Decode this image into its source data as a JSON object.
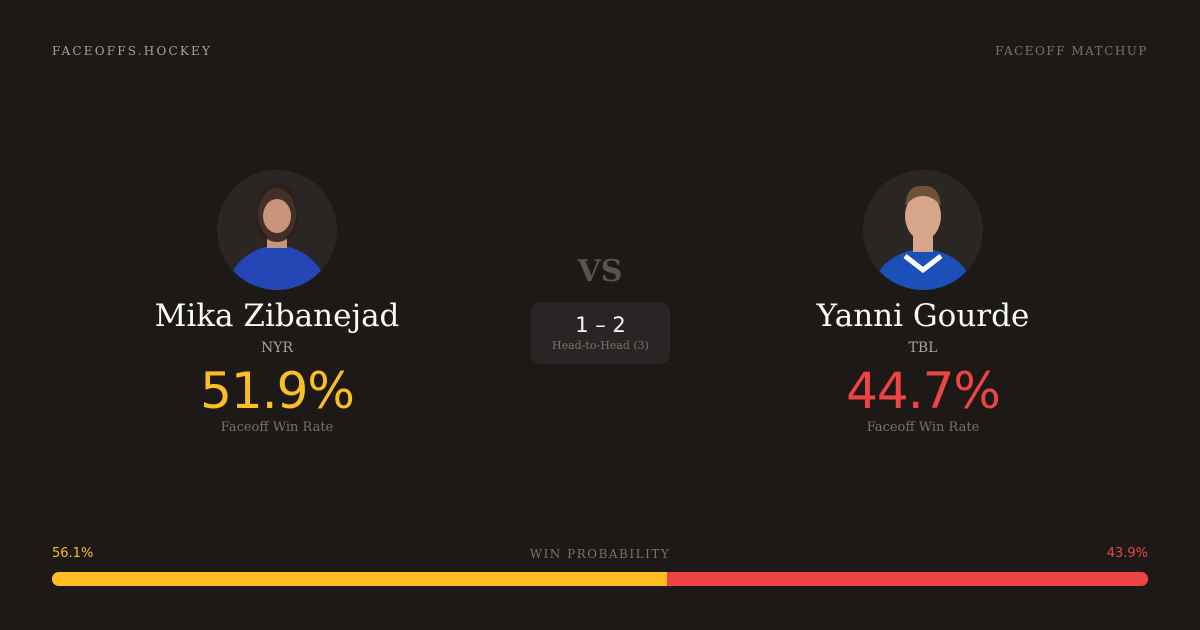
{
  "brand": "FACEOFFS.HOCKEY",
  "page_tag": "FACEOFF MATCHUP",
  "vs": "VS",
  "players": [
    {
      "name": "Mika Zibanejad",
      "team": "NYR",
      "win_rate": "51.9%",
      "win_rate_label": "Faceoff Win Rate",
      "color": "#fbbf24",
      "jersey": "#2546b5"
    },
    {
      "name": "Yanni Gourde",
      "team": "TBL",
      "win_rate": "44.7%",
      "win_rate_label": "Faceoff Win Rate",
      "color": "#ef4444",
      "jersey": "#1d4fb8"
    }
  ],
  "head_to_head": {
    "score": "1 – 2",
    "label": "Head-to-Head (3)"
  },
  "win_probability": {
    "label": "WIN PROBABILITY",
    "left": "56.1%",
    "right": "43.9%",
    "left_value": 56.1,
    "left_color": "#fbbf24",
    "right_color": "#ef4444"
  }
}
